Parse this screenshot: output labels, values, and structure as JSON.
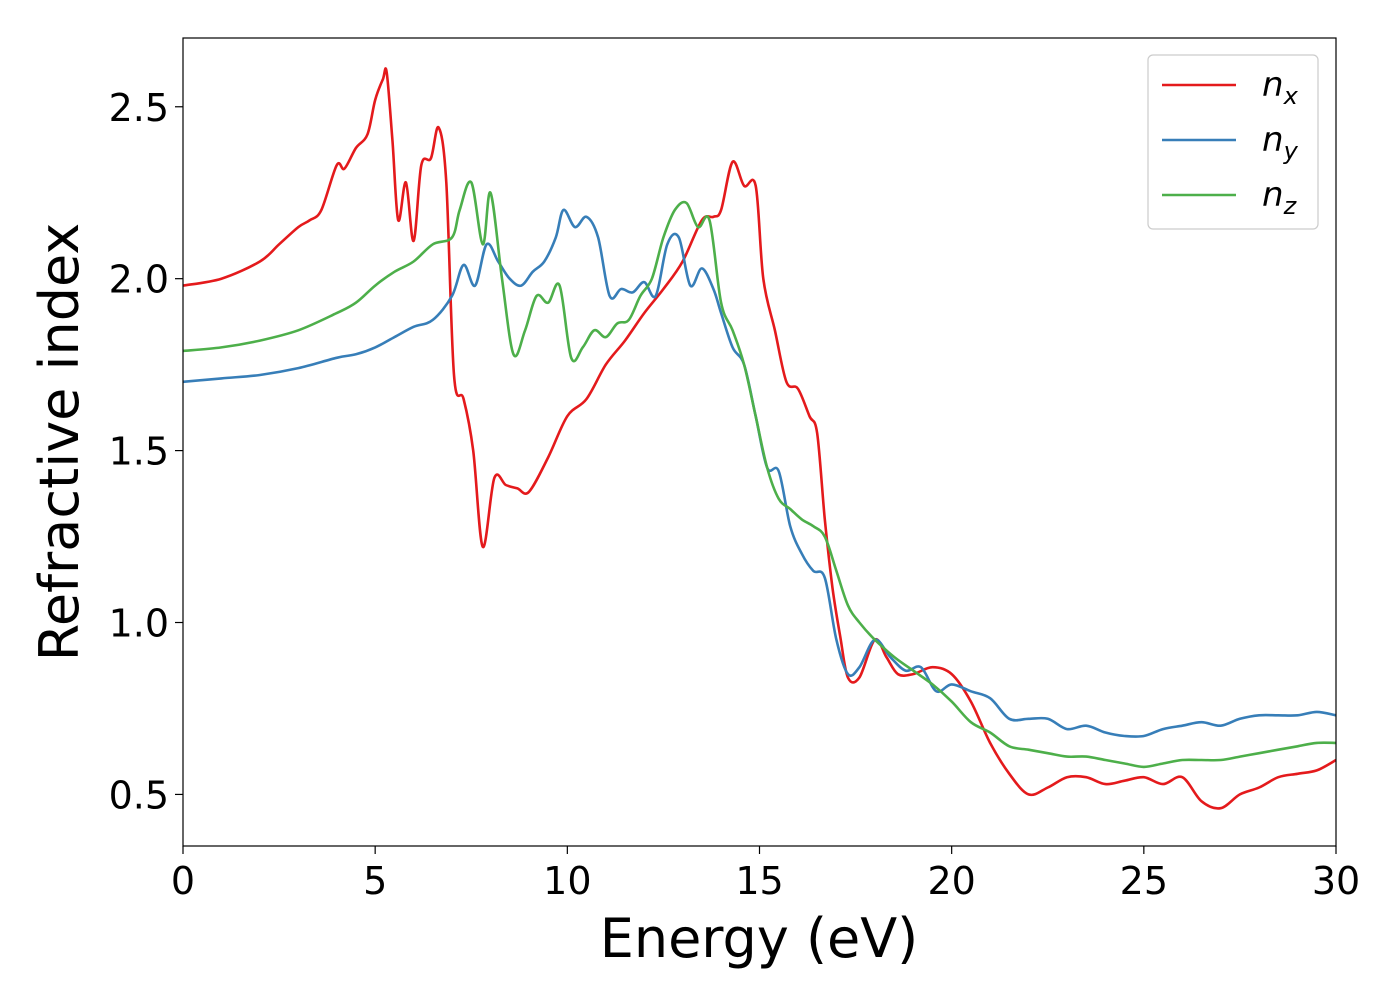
{
  "chart_data": {
    "type": "line",
    "xlabel": "Energy (eV)",
    "ylabel": "Refractive index",
    "xlim": [
      0,
      30
    ],
    "ylim": [
      0.35,
      2.7
    ],
    "xticks": [
      0,
      5,
      10,
      15,
      20,
      25,
      30
    ],
    "xtick_labels": [
      "0",
      "5",
      "10",
      "15",
      "20",
      "25",
      "30"
    ],
    "yticks": [
      0.5,
      1.0,
      1.5,
      2.0,
      2.5
    ],
    "ytick_labels": [
      "0.5",
      "1.0",
      "1.5",
      "2.0",
      "2.5"
    ],
    "grid": false,
    "legend_position": "top-right",
    "series": [
      {
        "name": "n_x",
        "label_main": "n",
        "label_sub": "x",
        "color": "#e41a1c",
        "x": [
          0,
          1,
          2,
          2.5,
          3,
          3.3,
          3.6,
          4.0,
          4.2,
          4.5,
          4.8,
          5.0,
          5.2,
          5.3,
          5.45,
          5.6,
          5.8,
          6.0,
          6.2,
          6.45,
          6.65,
          6.85,
          7.05,
          7.3,
          7.55,
          7.8,
          8.1,
          8.4,
          8.7,
          9.0,
          9.5,
          10.0,
          10.5,
          11.0,
          11.5,
          12.0,
          12.5,
          13.0,
          13.5,
          13.8,
          14.0,
          14.3,
          14.6,
          14.9,
          15.1,
          15.4,
          15.7,
          16.0,
          16.3,
          16.5,
          16.7,
          16.9,
          17.1,
          17.3,
          17.6,
          18.0,
          18.3,
          18.6,
          19.0,
          19.5,
          20.0,
          20.5,
          21.0,
          21.5,
          22.0,
          22.5,
          23.0,
          23.5,
          24.0,
          24.5,
          25.0,
          25.5,
          26.0,
          26.5,
          27.0,
          27.5,
          28.0,
          28.5,
          29.0,
          29.5,
          30.0
        ],
        "values": [
          1.98,
          2.0,
          2.05,
          2.1,
          2.15,
          2.17,
          2.2,
          2.33,
          2.32,
          2.38,
          2.42,
          2.52,
          2.58,
          2.6,
          2.4,
          2.17,
          2.28,
          2.11,
          2.33,
          2.35,
          2.44,
          2.28,
          1.72,
          1.65,
          1.5,
          1.22,
          1.42,
          1.4,
          1.39,
          1.38,
          1.48,
          1.6,
          1.65,
          1.75,
          1.82,
          1.9,
          1.97,
          2.05,
          2.17,
          2.18,
          2.2,
          2.34,
          2.27,
          2.27,
          2.0,
          1.85,
          1.7,
          1.68,
          1.6,
          1.55,
          1.3,
          1.1,
          0.96,
          0.84,
          0.84,
          0.95,
          0.9,
          0.85,
          0.85,
          0.87,
          0.85,
          0.77,
          0.65,
          0.56,
          0.5,
          0.52,
          0.55,
          0.55,
          0.53,
          0.54,
          0.55,
          0.53,
          0.55,
          0.48,
          0.46,
          0.5,
          0.52,
          0.55,
          0.56,
          0.57,
          0.6
        ]
      },
      {
        "name": "n_y",
        "label_main": "n",
        "label_sub": "y",
        "color": "#377eb8",
        "x": [
          0,
          1,
          2,
          3,
          4,
          4.5,
          5,
          5.5,
          6,
          6.5,
          7,
          7.3,
          7.6,
          7.9,
          8.2,
          8.5,
          8.8,
          9.1,
          9.4,
          9.7,
          9.9,
          10.2,
          10.5,
          10.8,
          11.1,
          11.4,
          11.7,
          12.0,
          12.3,
          12.6,
          12.9,
          13.2,
          13.5,
          13.8,
          14.0,
          14.3,
          14.6,
          14.9,
          15.2,
          15.5,
          15.8,
          16.1,
          16.4,
          16.7,
          17.0,
          17.3,
          17.6,
          18.0,
          18.4,
          18.8,
          19.2,
          19.6,
          20.0,
          20.5,
          21.0,
          21.5,
          22.0,
          22.5,
          23.0,
          23.5,
          24.0,
          24.5,
          25.0,
          25.5,
          26.0,
          26.5,
          27.0,
          27.5,
          28.0,
          28.5,
          29.0,
          29.5,
          30.0
        ],
        "values": [
          1.7,
          1.71,
          1.72,
          1.74,
          1.77,
          1.78,
          1.8,
          1.83,
          1.86,
          1.88,
          1.95,
          2.04,
          1.98,
          2.1,
          2.05,
          2.0,
          1.98,
          2.02,
          2.05,
          2.12,
          2.2,
          2.15,
          2.18,
          2.12,
          1.95,
          1.97,
          1.96,
          1.99,
          1.95,
          2.1,
          2.12,
          1.98,
          2.03,
          1.97,
          1.9,
          1.8,
          1.75,
          1.6,
          1.45,
          1.44,
          1.28,
          1.2,
          1.15,
          1.13,
          0.95,
          0.85,
          0.87,
          0.95,
          0.9,
          0.86,
          0.87,
          0.8,
          0.82,
          0.8,
          0.78,
          0.72,
          0.72,
          0.72,
          0.69,
          0.7,
          0.68,
          0.67,
          0.67,
          0.69,
          0.7,
          0.71,
          0.7,
          0.72,
          0.73,
          0.73,
          0.73,
          0.74,
          0.73
        ]
      },
      {
        "name": "n_z",
        "label_main": "n",
        "label_sub": "z",
        "color": "#4daf4a",
        "x": [
          0,
          1,
          2,
          3,
          4,
          4.5,
          5,
          5.5,
          6,
          6.5,
          7,
          7.2,
          7.5,
          7.8,
          8.0,
          8.3,
          8.6,
          8.9,
          9.2,
          9.5,
          9.8,
          10.1,
          10.4,
          10.7,
          11.0,
          11.3,
          11.6,
          11.9,
          12.2,
          12.5,
          12.8,
          13.1,
          13.4,
          13.7,
          14.0,
          14.3,
          14.6,
          14.9,
          15.2,
          15.5,
          15.8,
          16.1,
          16.4,
          16.7,
          17.0,
          17.3,
          17.6,
          18.0,
          18.5,
          19.0,
          19.5,
          20.0,
          20.5,
          21.0,
          21.5,
          22.0,
          22.5,
          23.0,
          23.5,
          24.0,
          24.5,
          25.0,
          25.5,
          26.0,
          26.5,
          27.0,
          27.5,
          28.0,
          28.5,
          29.0,
          29.5,
          30.0
        ],
        "values": [
          1.79,
          1.8,
          1.82,
          1.85,
          1.9,
          1.93,
          1.98,
          2.02,
          2.05,
          2.1,
          2.12,
          2.2,
          2.28,
          2.1,
          2.25,
          2.0,
          1.78,
          1.85,
          1.95,
          1.93,
          1.98,
          1.77,
          1.8,
          1.85,
          1.83,
          1.87,
          1.88,
          1.95,
          2.0,
          2.12,
          2.2,
          2.22,
          2.15,
          2.17,
          1.93,
          1.85,
          1.75,
          1.6,
          1.45,
          1.36,
          1.33,
          1.3,
          1.28,
          1.25,
          1.15,
          1.05,
          1.0,
          0.95,
          0.9,
          0.86,
          0.82,
          0.77,
          0.71,
          0.68,
          0.64,
          0.63,
          0.62,
          0.61,
          0.61,
          0.6,
          0.59,
          0.58,
          0.59,
          0.6,
          0.6,
          0.6,
          0.61,
          0.62,
          0.63,
          0.64,
          0.65,
          0.65
        ]
      }
    ]
  }
}
